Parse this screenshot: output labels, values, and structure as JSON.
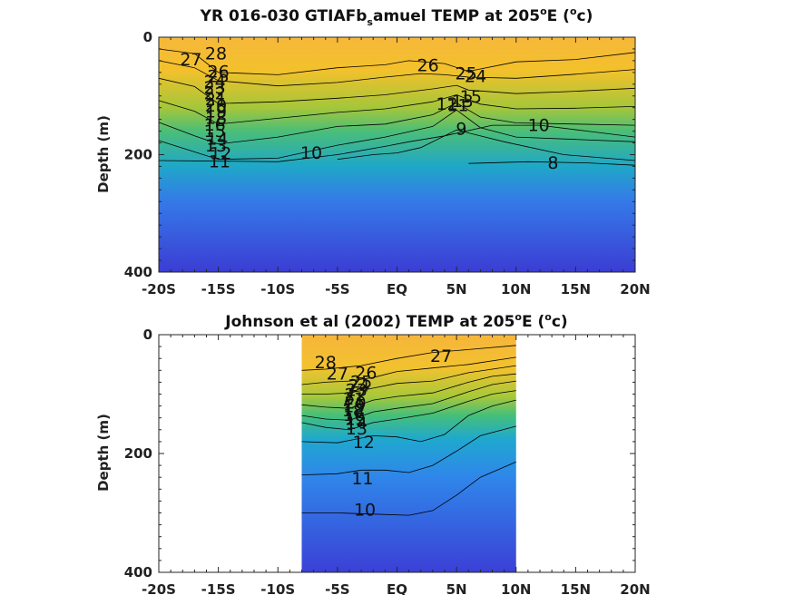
{
  "chart_data": [
    {
      "type": "contour",
      "title": "YR 016-030 GTIAFb_samuel TEMP at 205°E (°c)",
      "title_parts": {
        "main": "YR 016-030 GTIAFb",
        "sub": "s",
        "rest": "amuel TEMP at 205",
        "deg": "o",
        "unit_pre": "E (",
        "unit_deg": "o",
        "unit_post": "c)"
      },
      "ylabel": "Depth (m)",
      "xlabel": "",
      "xlim": [
        -20,
        20
      ],
      "ylim": [
        0,
        400
      ],
      "y_reversed": true,
      "x_ticks": [
        -20,
        -15,
        -10,
        -5,
        0,
        5,
        10,
        15,
        20
      ],
      "x_tick_labels": [
        "-20S",
        "-15S",
        "-10S",
        "-5S",
        "EQ",
        "5N",
        "10N",
        "15N",
        "20N"
      ],
      "y_ticks": [
        0,
        200,
        400
      ],
      "y_tick_labels": [
        "0",
        "200",
        "400"
      ],
      "data_extent": [
        -20,
        20
      ],
      "colorscale": [
        "#3b3fd6",
        "#3572ea",
        "#1fb0c8",
        "#45c07a",
        "#a4c83b",
        "#f2c12e",
        "#f6b73a"
      ],
      "contour_labels": [
        {
          "text": "28",
          "x": -15.2,
          "y": 27
        },
        {
          "text": "27",
          "x": -17.3,
          "y": 37
        },
        {
          "text": "26",
          "x": 2.6,
          "y": 47
        },
        {
          "text": "26",
          "x": -15.0,
          "y": 58
        },
        {
          "text": "25",
          "x": 5.8,
          "y": 61
        },
        {
          "text": "25",
          "x": -15.0,
          "y": 66
        },
        {
          "text": "24",
          "x": 6.6,
          "y": 66
        },
        {
          "text": "24",
          "x": -15.3,
          "y": 75
        },
        {
          "text": "23",
          "x": -15.3,
          "y": 85
        },
        {
          "text": "22",
          "x": -15.3,
          "y": 95
        },
        {
          "text": "21",
          "x": -15.2,
          "y": 105
        },
        {
          "text": "20",
          "x": -15.2,
          "y": 116
        },
        {
          "text": "19",
          "x": -15.2,
          "y": 126
        },
        {
          "text": "18",
          "x": -15.2,
          "y": 137
        },
        {
          "text": "16",
          "x": -15.3,
          "y": 148
        },
        {
          "text": "15",
          "x": -15.3,
          "y": 159
        },
        {
          "text": "14",
          "x": -15.1,
          "y": 172
        },
        {
          "text": "13",
          "x": -15.2,
          "y": 184
        },
        {
          "text": "12",
          "x": -14.8,
          "y": 197
        },
        {
          "text": "11",
          "x": -14.9,
          "y": 211
        },
        {
          "text": "10",
          "x": -7.2,
          "y": 196
        },
        {
          "text": "10",
          "x": 11.9,
          "y": 149
        },
        {
          "text": "9",
          "x": 5.4,
          "y": 155
        },
        {
          "text": "8",
          "x": 13.1,
          "y": 213
        },
        {
          "text": "15",
          "x": 6.2,
          "y": 100
        },
        {
          "text": "13",
          "x": 5.5,
          "y": 108
        },
        {
          "text": "12",
          "x": 4.2,
          "y": 113
        },
        {
          "text": "11",
          "x": 5.1,
          "y": 115
        }
      ],
      "contours": [
        {
          "level": 26,
          "points": [
            [
              -20,
              20
            ],
            [
              -17,
              28
            ],
            [
              -15,
              60
            ],
            [
              -10,
              64
            ],
            [
              -5,
              52
            ],
            [
              -1,
              47
            ],
            [
              1,
              40
            ],
            [
              4,
              45
            ],
            [
              6,
              58
            ],
            [
              10,
              42
            ],
            [
              15,
              38
            ],
            [
              20,
              26
            ]
          ]
        },
        {
          "level": 24,
          "points": [
            [
              -20,
              40
            ],
            [
              -17,
              52
            ],
            [
              -15,
              74
            ],
            [
              -10,
              83
            ],
            [
              -5,
              77
            ],
            [
              -1,
              68
            ],
            [
              2,
              62
            ],
            [
              4,
              64
            ],
            [
              6,
              68
            ],
            [
              10,
              70
            ],
            [
              15,
              63
            ],
            [
              20,
              55
            ]
          ]
        },
        {
          "level": 20,
          "points": [
            [
              -20,
              70
            ],
            [
              -17,
              84
            ],
            [
              -15,
              113
            ],
            [
              -10,
              110
            ],
            [
              -5,
              104
            ],
            [
              -1,
              98
            ],
            [
              3,
              88
            ],
            [
              5,
              82
            ],
            [
              6,
              90
            ],
            [
              10,
              96
            ],
            [
              15,
              92
            ],
            [
              20,
              87
            ]
          ]
        },
        {
          "level": 16,
          "points": [
            [
              -20,
              108
            ],
            [
              -17,
              126
            ],
            [
              -15,
              148
            ],
            [
              -10,
              138
            ],
            [
              -5,
              128
            ],
            [
              -1,
              122
            ],
            [
              3,
              110
            ],
            [
              5,
              98
            ],
            [
              7,
              114
            ],
            [
              10,
              122
            ],
            [
              15,
              121
            ],
            [
              20,
              118
            ]
          ]
        },
        {
          "level": 13,
          "points": [
            [
              -20,
              145
            ],
            [
              -17,
              168
            ],
            [
              -15,
              182
            ],
            [
              -10,
              170
            ],
            [
              -5,
              152
            ],
            [
              -1,
              148
            ],
            [
              3,
              132
            ],
            [
              5,
              112
            ],
            [
              7,
              136
            ],
            [
              10,
              146
            ],
            [
              15,
              148
            ],
            [
              20,
              150
            ]
          ]
        },
        {
          "level": 11,
          "points": [
            [
              -20,
              176
            ],
            [
              -15,
              208
            ],
            [
              -10,
              206
            ],
            [
              -5,
              184
            ],
            [
              -1,
              170
            ],
            [
              3,
              152
            ],
            [
              5,
              124
            ],
            [
              7,
              154
            ],
            [
              10,
              170
            ],
            [
              15,
              174
            ],
            [
              20,
              178
            ]
          ]
        },
        {
          "level": 10,
          "points": [
            [
              -20,
              210
            ],
            [
              -10,
              212
            ],
            [
              -5,
              200
            ],
            [
              -1,
              186
            ],
            [
              1,
              178
            ],
            [
              4,
              168
            ],
            [
              8,
              150
            ],
            [
              12,
              150
            ],
            [
              16,
              160
            ],
            [
              20,
              170
            ]
          ]
        },
        {
          "level": 9,
          "points": [
            [
              -5,
              208
            ],
            [
              -2,
              200
            ],
            [
              0,
              197
            ],
            [
              2,
              188
            ],
            [
              5,
              158
            ],
            [
              9,
              178
            ],
            [
              14,
              200
            ],
            [
              20,
              210
            ]
          ]
        },
        {
          "level": 8,
          "points": [
            [
              6,
              215
            ],
            [
              11,
              212
            ],
            [
              16,
              214
            ],
            [
              20,
              218
            ]
          ]
        }
      ]
    },
    {
      "type": "contour",
      "title": "Johnson et al (2002) TEMP at 205°E (°c)",
      "title_parts": {
        "main": "Johnson et al (2002) TEMP at 205",
        "deg": "o",
        "unit_pre": "E (",
        "unit_deg": "o",
        "unit_post": "c)"
      },
      "ylabel": "Depth (m)",
      "xlabel": "",
      "xlim": [
        -20,
        20
      ],
      "ylim": [
        0,
        400
      ],
      "y_reversed": true,
      "x_ticks": [
        -20,
        -15,
        -10,
        -5,
        0,
        5,
        10,
        15,
        20
      ],
      "x_tick_labels": [
        "-20S",
        "-15S",
        "-10S",
        "-5S",
        "EQ",
        "5N",
        "10N",
        "15N",
        "20N"
      ],
      "y_ticks": [
        0,
        200,
        400
      ],
      "y_tick_labels": [
        "0",
        "200",
        "400"
      ],
      "data_extent": [
        -8,
        10
      ],
      "colorscale": [
        "#3b3fd6",
        "#3572ea",
        "#1fb0c8",
        "#45c07a",
        "#a4c83b",
        "#f2c12e",
        "#f6b73a"
      ],
      "contour_labels": [
        {
          "text": "28",
          "x": -6.0,
          "y": 46
        },
        {
          "text": "27",
          "x": 3.7,
          "y": 35
        },
        {
          "text": "27",
          "x": -5.0,
          "y": 65
        },
        {
          "text": "26",
          "x": -2.6,
          "y": 63
        },
        {
          "text": "25",
          "x": -3.0,
          "y": 79
        },
        {
          "text": "24",
          "x": -3.2,
          "y": 85
        },
        {
          "text": "23",
          "x": -3.4,
          "y": 92
        },
        {
          "text": "22",
          "x": -3.5,
          "y": 100
        },
        {
          "text": "21",
          "x": -3.6,
          "y": 107
        },
        {
          "text": "20",
          "x": -3.5,
          "y": 114
        },
        {
          "text": "19",
          "x": -3.6,
          "y": 120
        },
        {
          "text": "18",
          "x": -3.7,
          "y": 127
        },
        {
          "text": "16",
          "x": -3.6,
          "y": 134
        },
        {
          "text": "15",
          "x": -3.5,
          "y": 141
        },
        {
          "text": "14",
          "x": -3.4,
          "y": 148
        },
        {
          "text": "13",
          "x": -3.4,
          "y": 157
        },
        {
          "text": "12",
          "x": -2.8,
          "y": 180
        },
        {
          "text": "11",
          "x": -2.9,
          "y": 241
        },
        {
          "text": "10",
          "x": -2.7,
          "y": 294
        }
      ],
      "contours": [
        {
          "level": 27,
          "points": [
            [
              -8,
              60
            ],
            [
              -6,
              58
            ],
            [
              -3,
              52
            ],
            [
              0,
              40
            ],
            [
              3,
              30
            ],
            [
              6,
              25
            ],
            [
              10,
              18
            ]
          ]
        },
        {
          "level": 25,
          "points": [
            [
              -8,
              84
            ],
            [
              -6,
              80
            ],
            [
              -4,
              78
            ],
            [
              -2,
              72
            ],
            [
              0,
              62
            ],
            [
              3,
              56
            ],
            [
              6,
              50
            ],
            [
              10,
              38
            ]
          ]
        },
        {
          "level": 22,
          "points": [
            [
              -8,
              100
            ],
            [
              -6,
              100
            ],
            [
              -4,
              98
            ],
            [
              -2,
              90
            ],
            [
              0,
              82
            ],
            [
              3,
              78
            ],
            [
              6,
              64
            ],
            [
              8,
              58
            ],
            [
              10,
              52
            ]
          ]
        },
        {
          "level": 18,
          "points": [
            [
              -8,
              118
            ],
            [
              -6,
              122
            ],
            [
              -4,
              124
            ],
            [
              -2,
              110
            ],
            [
              0,
              104
            ],
            [
              3,
              98
            ],
            [
              6,
              80
            ],
            [
              8,
              70
            ],
            [
              10,
              66
            ]
          ]
        },
        {
          "level": 15,
          "points": [
            [
              -8,
              136
            ],
            [
              -6,
              142
            ],
            [
              -4,
              144
            ],
            [
              -2,
              130
            ],
            [
              0,
              124
            ],
            [
              3,
              116
            ],
            [
              6,
              96
            ],
            [
              8,
              84
            ],
            [
              10,
              78
            ]
          ]
        },
        {
          "level": 13,
          "points": [
            [
              -8,
              148
            ],
            [
              -6,
              156
            ],
            [
              -4,
              160
            ],
            [
              -2,
              148
            ],
            [
              0,
              142
            ],
            [
              3,
              132
            ],
            [
              6,
              112
            ],
            [
              8,
              100
            ],
            [
              10,
              94
            ]
          ]
        },
        {
          "level": 12,
          "points": [
            [
              -8,
              180
            ],
            [
              -5,
              182
            ],
            [
              -2,
              170
            ],
            [
              0,
              172
            ],
            [
              2,
              180
            ],
            [
              4,
              168
            ],
            [
              6,
              136
            ],
            [
              8,
              120
            ],
            [
              10,
              110
            ]
          ]
        },
        {
          "level": 11,
          "points": [
            [
              -8,
              236
            ],
            [
              -5,
              234
            ],
            [
              -3,
              228
            ],
            [
              -1,
              228
            ],
            [
              1,
              232
            ],
            [
              3,
              220
            ],
            [
              5,
              196
            ],
            [
              7,
              170
            ],
            [
              10,
              154
            ]
          ]
        },
        {
          "level": 10,
          "points": [
            [
              -8,
              300
            ],
            [
              -5,
              300
            ],
            [
              -2,
              302
            ],
            [
              1,
              304
            ],
            [
              3,
              296
            ],
            [
              5,
              270
            ],
            [
              7,
              240
            ],
            [
              10,
              214
            ]
          ]
        }
      ]
    }
  ]
}
